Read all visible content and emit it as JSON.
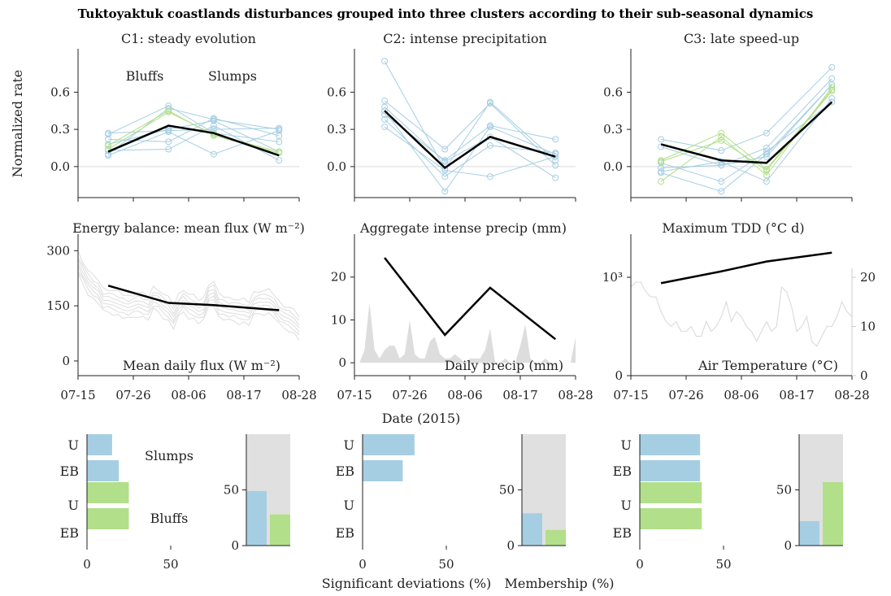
{
  "title": "Tuktoyaktuk coastlands disturbances grouped into three clusters according to their sub-seasonal dynamics",
  "colors": {
    "slumps": "#a6cee3",
    "bluffs": "#b2df8a",
    "mean": "#000000",
    "grey": "#dddddd",
    "zero": "#e6e6e6"
  },
  "chart_data": [
    {
      "type": "line",
      "title": "C1: steady evolution",
      "ylabel": "Normalized rate",
      "x": [
        "07-21",
        "08-02",
        "08-11",
        "08-24"
      ],
      "ylim": [
        -0.25,
        0.95
      ],
      "yticks": [
        "0.0",
        "0.3",
        "0.6"
      ],
      "legend": [
        "Bluffs",
        "Slumps"
      ],
      "series": [
        {
          "group": "slumps",
          "values": [
            0.1,
            0.47,
            0.38,
            0.3
          ]
        },
        {
          "group": "slumps",
          "values": [
            0.27,
            0.29,
            0.3,
            0.31
          ]
        },
        {
          "group": "slumps",
          "values": [
            0.22,
            0.2,
            0.39,
            0.25
          ]
        },
        {
          "group": "slumps",
          "values": [
            0.13,
            0.14,
            0.33,
            0.05
          ]
        },
        {
          "group": "slumps",
          "values": [
            0.09,
            0.28,
            0.1,
            0.29
          ]
        },
        {
          "group": "slumps",
          "values": [
            0.26,
            0.49,
            0.27,
            0.2
          ]
        },
        {
          "group": "slumps",
          "values": [
            0.18,
            0.3,
            0.37,
            0.12
          ]
        },
        {
          "group": "bluffs",
          "values": [
            0.17,
            0.45,
            0.25,
            0.11
          ]
        },
        {
          "group": "bluffs",
          "values": [
            0.14,
            0.44,
            0.26,
            0.12
          ]
        },
        {
          "group": "mean",
          "values": [
            0.12,
            0.33,
            0.27,
            0.09
          ]
        }
      ]
    },
    {
      "type": "line",
      "title": "C2: intense precipitation",
      "x": [
        "07-21",
        "08-02",
        "08-11",
        "08-24"
      ],
      "ylim": [
        -0.25,
        0.95
      ],
      "yticks": [
        "0.0",
        "0.3",
        "0.6"
      ],
      "series": [
        {
          "group": "slumps",
          "values": [
            0.85,
            -0.02,
            0.52,
            0.05
          ]
        },
        {
          "group": "slumps",
          "values": [
            0.53,
            0.14,
            0.51,
            0.01
          ]
        },
        {
          "group": "slumps",
          "values": [
            0.45,
            -0.2,
            0.32,
            0.1
          ]
        },
        {
          "group": "slumps",
          "values": [
            0.42,
            0.05,
            0.33,
            0.22
          ]
        },
        {
          "group": "slumps",
          "values": [
            0.38,
            -0.08,
            0.17,
            0.11
          ]
        },
        {
          "group": "slumps",
          "values": [
            0.32,
            -0.03,
            -0.08,
            0.08
          ]
        },
        {
          "group": "slumps",
          "values": [
            0.48,
            0.04,
            0.24,
            -0.09
          ]
        },
        {
          "group": "mean",
          "values": [
            0.45,
            -0.01,
            0.24,
            0.08
          ]
        }
      ]
    },
    {
      "type": "line",
      "title": "C3: late speed-up",
      "x": [
        "07-21",
        "08-02",
        "08-11",
        "08-24"
      ],
      "ylim": [
        -0.25,
        0.95
      ],
      "yticks": [
        "0.0",
        "0.3",
        "0.6"
      ],
      "series": [
        {
          "group": "slumps",
          "values": [
            0.22,
            0.13,
            0.27,
            0.8
          ]
        },
        {
          "group": "slumps",
          "values": [
            0.16,
            0.01,
            0.15,
            0.71
          ]
        },
        {
          "group": "slumps",
          "values": [
            -0.05,
            -0.2,
            0.1,
            0.66
          ]
        },
        {
          "group": "slumps",
          "values": [
            -0.04,
            0.04,
            -0.12,
            0.55
          ]
        },
        {
          "group": "slumps",
          "values": [
            0.03,
            -0.12,
            0.12,
            0.52
          ]
        },
        {
          "group": "slumps",
          "values": [
            -0.01,
            0.01,
            0.08,
            0.66
          ]
        },
        {
          "group": "bluffs",
          "values": [
            0.05,
            0.27,
            -0.02,
            0.62
          ]
        },
        {
          "group": "bluffs",
          "values": [
            -0.12,
            0.24,
            -0.07,
            0.64
          ]
        },
        {
          "group": "bluffs",
          "values": [
            0.04,
            0.21,
            -0.03,
            0.61
          ]
        },
        {
          "group": "mean",
          "values": [
            0.18,
            0.05,
            0.03,
            0.52
          ]
        }
      ]
    },
    {
      "type": "line",
      "title": "Energy balance: mean flux (W m⁻²)",
      "inner_label": "Mean daily flux (W m⁻²)",
      "xlim_days": [
        0,
        44
      ],
      "ylim": [
        -40,
        345
      ],
      "yticks": [
        "0",
        "150",
        "300"
      ],
      "x": [
        "07-21",
        "08-02",
        "08-11",
        "08-24"
      ],
      "mean_values": [
        205,
        158,
        152,
        138
      ],
      "daily_mean_approx": [
        265,
        240,
        215,
        200,
        190,
        165,
        165,
        160,
        155,
        150,
        145,
        150,
        155,
        150,
        145,
        170,
        165,
        150,
        140,
        120,
        150,
        165,
        150,
        145,
        135,
        140,
        180,
        185,
        150,
        145,
        140,
        140,
        135,
        135,
        130,
        155,
        160,
        160,
        160,
        150,
        130,
        120,
        115,
        105,
        90
      ]
    },
    {
      "type": "area",
      "title": "Aggregate intense precip (mm)",
      "inner_label": "Daily precip (mm)",
      "xlim_days": [
        0,
        44
      ],
      "ylim": [
        -3,
        30
      ],
      "yticks": [
        "0",
        "10",
        "20"
      ],
      "x": [
        "07-21",
        "08-02",
        "08-11",
        "08-24"
      ],
      "aggregate": [
        24.5,
        6.5,
        17.5,
        5.5
      ],
      "daily": [
        0,
        0,
        3,
        14,
        3,
        1,
        3,
        4,
        4,
        1,
        2,
        10,
        2,
        1,
        1,
        5,
        6,
        2,
        1,
        1,
        2,
        1,
        0,
        1,
        1,
        1,
        3,
        8,
        0,
        0,
        1,
        0,
        0,
        4,
        9,
        1,
        0,
        0,
        1,
        0,
        0,
        0,
        0,
        0,
        6
      ]
    },
    {
      "type": "line",
      "title": "Maximum TDD (°C d)",
      "inner_label": "Air Temperature (°C)",
      "xlim_days": [
        0,
        44
      ],
      "yticks_left": [
        "0",
        "10³"
      ],
      "yticks_right": [
        "0",
        "10",
        "20"
      ],
      "x": [
        "07-21",
        "08-02",
        "08-11",
        "08-24"
      ],
      "tdd": [
        940,
        1060,
        1160,
        1250
      ],
      "air_temperature": [
        18,
        19,
        19,
        17,
        16,
        16,
        13,
        11,
        10,
        11,
        9,
        9,
        10,
        8,
        8,
        11,
        9,
        10,
        12,
        15,
        11,
        13,
        12,
        10,
        9,
        7,
        9,
        11,
        9,
        10,
        18,
        17,
        14,
        9,
        10,
        12,
        7,
        6,
        8,
        10,
        10,
        12,
        15,
        13,
        12
      ]
    },
    {
      "type": "bar",
      "categories": [
        "U",
        "EB",
        "U",
        "EB"
      ],
      "xticks": [
        "0",
        "50"
      ],
      "xlim": [
        0,
        70
      ],
      "deviations": [
        {
          "group": "slumps",
          "values": [
            15,
            19
          ]
        },
        {
          "group": "bluffs",
          "values": [
            25,
            25
          ]
        }
      ],
      "membership": {
        "slumps": 49,
        "bluffs": 28
      },
      "legend": [
        "Slumps",
        "Bluffs"
      ]
    },
    {
      "type": "bar",
      "categories": [
        "U",
        "EB",
        "U",
        "EB"
      ],
      "xticks": [
        "0",
        "50"
      ],
      "xlim": [
        0,
        70
      ],
      "deviations": [
        {
          "group": "slumps",
          "values": [
            31,
            24
          ]
        },
        {
          "group": "bluffs",
          "values": [
            0,
            0
          ]
        }
      ],
      "membership": {
        "slumps": 29,
        "bluffs": 14
      }
    },
    {
      "type": "bar",
      "categories": [
        "U",
        "EB",
        "U",
        "EB"
      ],
      "xticks": [
        "0",
        "50"
      ],
      "xlim": [
        0,
        70
      ],
      "deviations": [
        {
          "group": "slumps",
          "values": [
            36,
            36
          ]
        },
        {
          "group": "bluffs",
          "values": [
            37,
            37
          ]
        }
      ],
      "membership": {
        "slumps": 22,
        "bluffs": 57
      }
    }
  ],
  "xaxis": {
    "ticks": [
      "07-15",
      "07-26",
      "08-06",
      "08-17",
      "08-28"
    ],
    "label": "Date (2015)"
  },
  "membership_yticks": [
    "0",
    "50"
  ],
  "bottom_labels": {
    "deviations": "Significant deviations (%)",
    "membership": "Membership (%)"
  }
}
